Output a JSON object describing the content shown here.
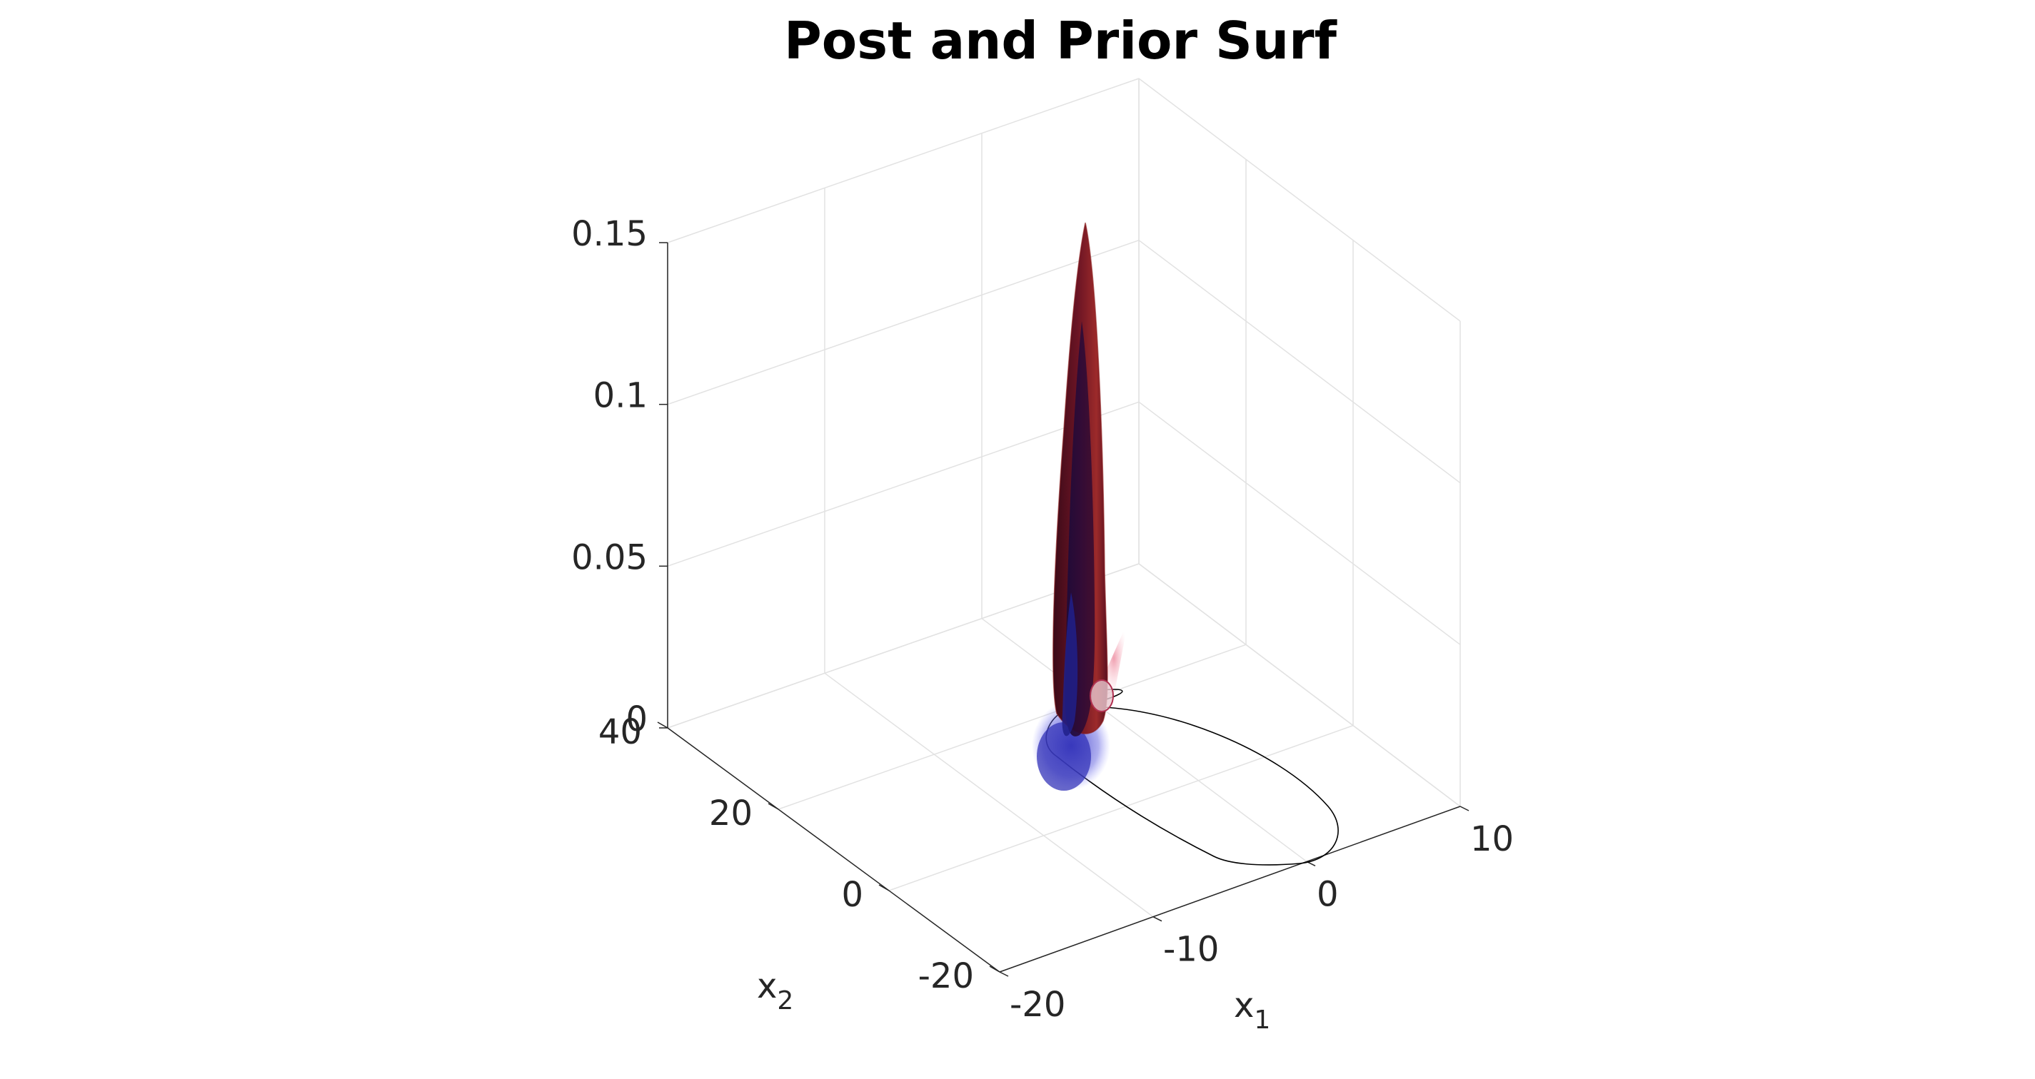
{
  "chart_data": {
    "type": "surface3d",
    "title": "Post and Prior Surf",
    "xlabel": {
      "base": "x",
      "sub": "1"
    },
    "ylabel": {
      "base": "x",
      "sub": "2"
    },
    "zlabel": "",
    "xlim": [
      -20,
      10
    ],
    "ylim": [
      -20,
      40
    ],
    "zlim": [
      0,
      0.15
    ],
    "xticks": [
      "-20",
      "-10",
      "0",
      "10"
    ],
    "yticks": [
      "-20",
      "0",
      "20",
      "40"
    ],
    "zticks": [
      "0",
      "0.05",
      "0.1",
      "0.15"
    ],
    "grid": true,
    "series": [
      {
        "color": "#8b1a1a",
        "peak": 0.145
      },
      {
        "color": "#2a2aa0",
        "peak": 0.125
      }
    ],
    "trajectory_color": "#000000"
  }
}
